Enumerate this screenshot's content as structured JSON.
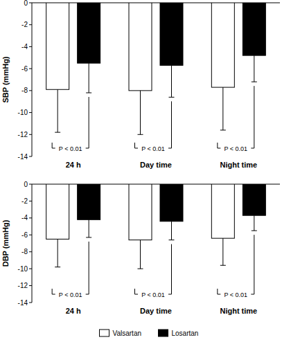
{
  "chart_data": [
    {
      "type": "bar",
      "y_label": "SBP (mmHg)",
      "categories": [
        "24 h",
        "Day time",
        "Night time"
      ],
      "series": [
        {
          "name": "Valsartan",
          "color": "#ffffff",
          "values": [
            -7.9,
            -8.0,
            -7.7
          ],
          "errors": [
            3.9,
            4.0,
            3.9
          ]
        },
        {
          "name": "Losartan",
          "color": "#000000",
          "values": [
            -5.5,
            -5.7,
            -4.8
          ],
          "errors": [
            2.7,
            2.9,
            2.4
          ]
        }
      ],
      "annotations": [
        "P < 0.01",
        "P < 0.01",
        "P < 0.01"
      ],
      "ylim": [
        -14,
        0
      ],
      "yticks": [
        0,
        -2,
        -4,
        -6,
        -8,
        -10,
        -12,
        -14
      ]
    },
    {
      "type": "bar",
      "y_label": "DBP (mmHg)",
      "categories": [
        "24 h",
        "Day time",
        "Night time"
      ],
      "series": [
        {
          "name": "Valsartan",
          "color": "#ffffff",
          "values": [
            -6.5,
            -6.6,
            -6.4
          ],
          "errors": [
            3.3,
            3.4,
            3.2
          ]
        },
        {
          "name": "Losartan",
          "color": "#000000",
          "values": [
            -4.2,
            -4.4,
            -3.7
          ],
          "errors": [
            2.1,
            2.2,
            1.8
          ]
        }
      ],
      "annotations": [
        "P < 0.01",
        "P < 0.01",
        "P < 0.01"
      ],
      "ylim": [
        -14,
        0
      ],
      "yticks": [
        0,
        -2,
        -4,
        -6,
        -8,
        -10,
        -12,
        -14
      ],
      "legend": "bottom"
    }
  ]
}
